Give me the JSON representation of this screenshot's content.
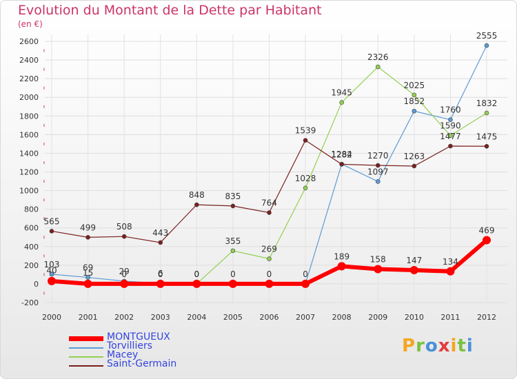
{
  "chart_data": {
    "type": "line",
    "title": "Evolution du Montant de la Dette par Habitant",
    "subtitle": "(en €)",
    "x": [
      "2000",
      "2001",
      "2002",
      "2003",
      "2004",
      "2005",
      "2006",
      "2007",
      "2008",
      "2009",
      "2010",
      "2011",
      "2012"
    ],
    "ylim": [
      -200,
      2600
    ],
    "yticks": [
      -200,
      0,
      200,
      400,
      600,
      800,
      1000,
      1200,
      1400,
      1600,
      1800,
      2000,
      2200,
      2400,
      2600
    ],
    "grid": true,
    "legend_position": "bottom-left",
    "series": [
      {
        "name": "MONTGUEUX",
        "color": "#ff0000",
        "values": [
          30,
          0,
          0,
          0,
          0,
          0,
          0,
          0,
          189,
          158,
          147,
          134,
          469
        ]
      },
      {
        "name": "Torvilliers",
        "color": "#5b9bd5",
        "values": [
          103,
          69,
          29,
          6,
          0,
          0,
          0,
          0,
          1284,
          1097,
          1852,
          1760,
          2555
        ]
      },
      {
        "name": "Macey",
        "color": "#92d050",
        "values": [
          40,
          15,
          0,
          0,
          0,
          355,
          269,
          1028,
          1945,
          2326,
          2025,
          1590,
          1832
        ]
      },
      {
        "name": "Saint-Germain",
        "color": "#7a1f1f",
        "values": [
          565,
          499,
          508,
          443,
          848,
          835,
          764,
          1539,
          1282,
          1270,
          1263,
          1477,
          1475
        ]
      }
    ],
    "data_labels": [
      {
        "series": "MONTGUEUX",
        "labels": [
          "",
          "",
          "",
          "",
          "",
          "",
          "",
          "",
          "189",
          "158",
          "147",
          "134",
          "469"
        ]
      },
      {
        "series": "Torvilliers",
        "labels": [
          "103",
          "69",
          "29",
          "6",
          "0",
          "0",
          "0",
          "0",
          "1284",
          "1097",
          "1852",
          "1760",
          "2555"
        ]
      },
      {
        "series": "Macey",
        "labels": [
          "40",
          "15",
          "0",
          "0",
          "0",
          "355",
          "269",
          "1028",
          "1945",
          "2326",
          "2025",
          "1590",
          "1832"
        ]
      },
      {
        "series": "Saint-Germain",
        "labels": [
          "565",
          "499",
          "508",
          "443",
          "848",
          "835",
          "764",
          "1539",
          "1282",
          "1270",
          "1263",
          "1477",
          "1475"
        ]
      }
    ]
  },
  "logo": {
    "letters": [
      "P",
      "r",
      "o",
      "x",
      "i",
      "t",
      "i"
    ],
    "colors": [
      "#f5a623",
      "#7ac143",
      "#4a90d9",
      "#e23b3b",
      "#f5a623",
      "#7ac143",
      "#4a90d9"
    ]
  }
}
